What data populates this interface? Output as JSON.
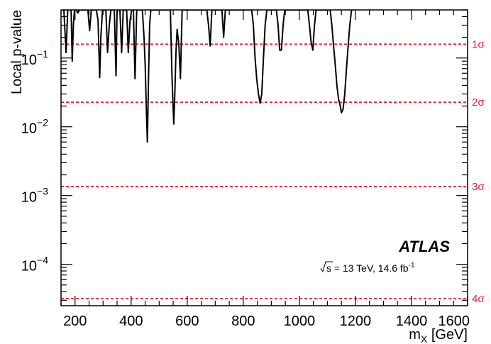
{
  "chart_data": {
    "type": "line",
    "title": "",
    "xlabel": "m",
    "xlabel_sub": "X",
    "xlabel_unit": " [GeV]",
    "ylabel": "Local p-value",
    "xlim": [
      150,
      1600
    ],
    "ylim": [
      2.5e-05,
      0.5
    ],
    "yscale": "log",
    "x_ticks": [
      200,
      400,
      600,
      800,
      1000,
      1200,
      1400,
      1600
    ],
    "x_tick_labels": [
      "200",
      "400",
      "600",
      "800",
      "1000",
      "1200",
      "1400",
      "1600"
    ],
    "y_ticks": [
      {
        "value": 0.1,
        "base": "10",
        "exp": "−1"
      },
      {
        "value": 0.01,
        "base": "10",
        "exp": "−2"
      },
      {
        "value": 0.001,
        "base": "10",
        "exp": "−3"
      },
      {
        "value": 0.0001,
        "base": "10",
        "exp": "−4"
      }
    ],
    "grid": false,
    "series": [
      {
        "color": "#000000",
        "x": [
          160,
          168,
          174,
          180,
          186,
          190,
          194,
          198,
          204,
          210,
          216,
          222,
          228,
          234,
          240,
          246,
          252,
          258,
          264,
          270,
          276,
          282,
          288,
          292,
          298,
          304,
          310,
          316,
          322,
          328,
          334,
          340,
          346,
          350,
          354,
          360,
          366,
          372,
          378,
          384,
          390,
          396,
          402,
          408,
          414,
          420,
          430,
          440,
          446,
          450,
          454,
          458,
          462,
          466,
          470,
          480,
          490,
          500,
          510,
          520,
          530,
          540,
          546,
          552,
          556,
          560,
          564,
          570,
          576,
          582,
          590,
          600,
          610,
          620,
          630,
          640,
          650,
          660,
          670,
          676,
          682,
          688,
          694,
          700,
          706,
          712,
          718,
          724,
          730,
          736,
          742,
          750,
          760,
          770,
          780,
          790,
          800,
          810,
          820,
          830,
          836,
          842,
          848,
          854,
          860,
          866,
          872,
          878,
          884,
          890,
          896,
          900,
          906,
          912,
          918,
          924,
          930,
          936,
          942,
          948,
          954,
          960,
          970,
          980,
          990,
          1000,
          1010,
          1020,
          1030,
          1036,
          1042,
          1048,
          1054,
          1060,
          1066,
          1072,
          1080,
          1090,
          1100,
          1110,
          1116,
          1122,
          1128,
          1134,
          1140,
          1146,
          1150,
          1156,
          1162,
          1168,
          1174,
          1180,
          1186,
          1190
        ],
        "values": [
          0.5,
          0.12,
          0.5,
          0.5,
          0.5,
          0.09,
          0.3,
          0.5,
          0.5,
          0.45,
          0.5,
          0.5,
          0.5,
          0.5,
          0.5,
          0.5,
          0.25,
          0.5,
          0.5,
          0.5,
          0.5,
          0.35,
          0.052,
          0.2,
          0.5,
          0.5,
          0.5,
          0.12,
          0.3,
          0.5,
          0.5,
          0.5,
          0.055,
          0.5,
          0.5,
          0.5,
          0.12,
          0.5,
          0.5,
          0.5,
          0.12,
          0.35,
          0.5,
          0.5,
          0.05,
          0.5,
          0.5,
          0.5,
          0.2,
          0.08,
          0.02,
          0.006,
          0.05,
          0.3,
          0.5,
          0.5,
          0.5,
          0.5,
          0.5,
          0.5,
          0.5,
          0.5,
          0.05,
          0.011,
          0.03,
          0.12,
          0.26,
          0.16,
          0.05,
          0.5,
          0.5,
          0.5,
          0.5,
          0.5,
          0.5,
          0.5,
          0.5,
          0.5,
          0.5,
          0.3,
          0.15,
          0.5,
          0.5,
          0.5,
          0.5,
          0.5,
          0.5,
          0.5,
          0.2,
          0.5,
          0.5,
          0.5,
          0.5,
          0.5,
          0.5,
          0.5,
          0.5,
          0.5,
          0.5,
          0.5,
          0.3,
          0.1,
          0.05,
          0.03,
          0.022,
          0.03,
          0.1,
          0.3,
          0.5,
          0.5,
          0.5,
          0.5,
          0.5,
          0.5,
          0.5,
          0.3,
          0.13,
          0.13,
          0.3,
          0.5,
          0.5,
          0.5,
          0.5,
          0.5,
          0.5,
          0.5,
          0.5,
          0.5,
          0.5,
          0.3,
          0.17,
          0.13,
          0.3,
          0.5,
          0.5,
          0.5,
          0.5,
          0.5,
          0.5,
          0.5,
          0.3,
          0.15,
          0.08,
          0.04,
          0.025,
          0.02,
          0.016,
          0.018,
          0.03,
          0.07,
          0.15,
          0.3,
          0.5,
          0.5
        ]
      }
    ],
    "reference_lines": [
      {
        "value": 0.1587,
        "label": "1σ",
        "color": "#e8202a"
      },
      {
        "value": 0.02275,
        "label": "2σ",
        "color": "#e8202a"
      },
      {
        "value": 0.00135,
        "label": "3σ",
        "color": "#e8202a"
      },
      {
        "value": 3.17e-05,
        "label": "4σ",
        "color": "#e8202a"
      }
    ],
    "annotations": {
      "experiment": "ATLAS",
      "energy_sqrt": "s",
      "energy_text": " = 13 TeV, 14.6 fb",
      "energy_sup": "-1"
    }
  }
}
